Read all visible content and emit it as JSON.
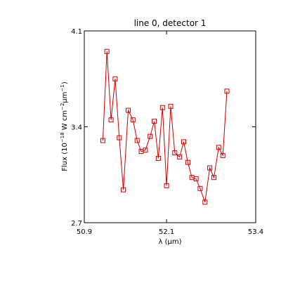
{
  "chart_data": {
    "type": "line",
    "title": "line 0, detector 1",
    "xlabel": "λ (μm)",
    "ylabel": {
      "prefix": "Flux (10",
      "exp1": "−18",
      "mid": " W cm",
      "exp2": "−2",
      "mu": "μm",
      "exp3": "−1",
      "suffix": ")"
    },
    "xlim": [
      50.9,
      53.4
    ],
    "ylim": [
      2.7,
      4.1
    ],
    "x_ticks": [
      {
        "value": 50.9,
        "label": "50.9"
      },
      {
        "value": 52.1,
        "label": "52.1"
      },
      {
        "value": 53.4,
        "label": "53.4"
      }
    ],
    "y_ticks": [
      {
        "value": 2.7,
        "label": "2.7"
      },
      {
        "value": 3.4,
        "label": "3.4"
      },
      {
        "value": 4.1,
        "label": "4.1"
      }
    ],
    "line_color": "#cc0000",
    "marker": "open-square",
    "series": [
      {
        "x": [
          51.17,
          51.23,
          51.29,
          51.35,
          51.41,
          51.47,
          51.54,
          51.61,
          51.67,
          51.73,
          51.79,
          51.86,
          51.92,
          51.98,
          52.04,
          52.1,
          52.16,
          52.22,
          52.29,
          52.35,
          52.41,
          52.47,
          52.53,
          52.59,
          52.66,
          52.73,
          52.79,
          52.86,
          52.92,
          52.98
        ],
        "y": [
          3.3,
          3.95,
          3.45,
          3.75,
          3.32,
          2.94,
          3.52,
          3.45,
          3.3,
          3.22,
          3.23,
          3.33,
          3.44,
          3.17,
          3.54,
          2.97,
          3.55,
          3.21,
          3.18,
          3.29,
          3.14,
          3.03,
          3.02,
          2.95,
          2.85,
          3.1,
          3.03,
          3.25,
          3.19,
          3.66
        ]
      }
    ]
  }
}
